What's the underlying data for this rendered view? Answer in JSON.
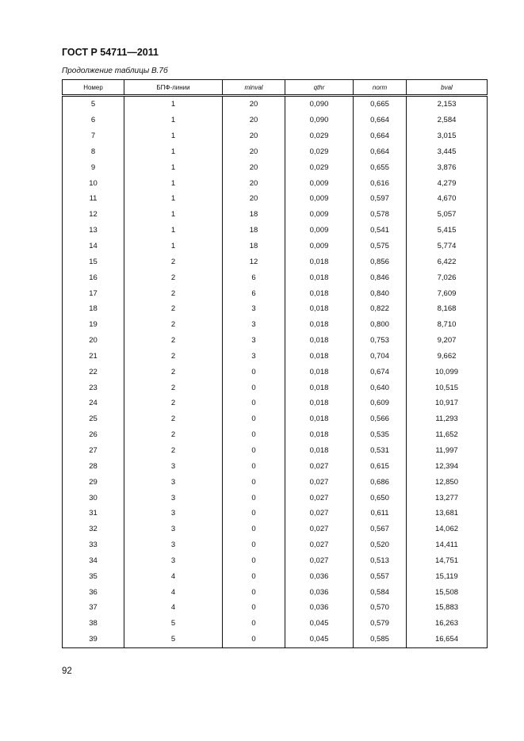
{
  "header": {
    "title": "ГОСТ Р 54711—2011"
  },
  "caption": "Продолжение таблицы В.7б",
  "table": {
    "columns": [
      "Номер",
      "БПФ-линии",
      "minval",
      "qthr",
      "norm",
      "bval"
    ],
    "rows": [
      [
        "5",
        "1",
        "20",
        "0,090",
        "0,665",
        "2,153"
      ],
      [
        "6",
        "1",
        "20",
        "0,090",
        "0,664",
        "2,584"
      ],
      [
        "7",
        "1",
        "20",
        "0,029",
        "0,664",
        "3,015"
      ],
      [
        "8",
        "1",
        "20",
        "0,029",
        "0,664",
        "3,445"
      ],
      [
        "9",
        "1",
        "20",
        "0,029",
        "0,655",
        "3,876"
      ],
      [
        "10",
        "1",
        "20",
        "0,009",
        "0,616",
        "4,279"
      ],
      [
        "11",
        "1",
        "20",
        "0,009",
        "0,597",
        "4,670"
      ],
      [
        "12",
        "1",
        "18",
        "0,009",
        "0,578",
        "5,057"
      ],
      [
        "13",
        "1",
        "18",
        "0,009",
        "0,541",
        "5,415"
      ],
      [
        "14",
        "1",
        "18",
        "0,009",
        "0,575",
        "5,774"
      ],
      [
        "15",
        "2",
        "12",
        "0,018",
        "0,856",
        "6,422"
      ],
      [
        "16",
        "2",
        "6",
        "0,018",
        "0,846",
        "7,026"
      ],
      [
        "17",
        "2",
        "6",
        "0,018",
        "0,840",
        "7,609"
      ],
      [
        "18",
        "2",
        "3",
        "0,018",
        "0,822",
        "8,168"
      ],
      [
        "19",
        "2",
        "3",
        "0,018",
        "0,800",
        "8,710"
      ],
      [
        "20",
        "2",
        "3",
        "0,018",
        "0,753",
        "9,207"
      ],
      [
        "21",
        "2",
        "3",
        "0,018",
        "0,704",
        "9,662"
      ],
      [
        "22",
        "2",
        "0",
        "0,018",
        "0,674",
        "10,099"
      ],
      [
        "23",
        "2",
        "0",
        "0,018",
        "0,640",
        "10,515"
      ],
      [
        "24",
        "2",
        "0",
        "0,018",
        "0,609",
        "10,917"
      ],
      [
        "25",
        "2",
        "0",
        "0,018",
        "0,566",
        "11,293"
      ],
      [
        "26",
        "2",
        "0",
        "0,018",
        "0,535",
        "11,652"
      ],
      [
        "27",
        "2",
        "0",
        "0,018",
        "0,531",
        "11,997"
      ],
      [
        "28",
        "3",
        "0",
        "0,027",
        "0,615",
        "12,394"
      ],
      [
        "29",
        "3",
        "0",
        "0,027",
        "0,686",
        "12,850"
      ],
      [
        "30",
        "3",
        "0",
        "0,027",
        "0,650",
        "13,277"
      ],
      [
        "31",
        "3",
        "0",
        "0,027",
        "0,611",
        "13,681"
      ],
      [
        "32",
        "3",
        "0",
        "0,027",
        "0,567",
        "14,062"
      ],
      [
        "33",
        "3",
        "0",
        "0,027",
        "0,520",
        "14,411"
      ],
      [
        "34",
        "3",
        "0",
        "0,027",
        "0,513",
        "14,751"
      ],
      [
        "35",
        "4",
        "0",
        "0,036",
        "0,557",
        "15,119"
      ],
      [
        "36",
        "4",
        "0",
        "0,036",
        "0,584",
        "15,508"
      ],
      [
        "37",
        "4",
        "0",
        "0,036",
        "0,570",
        "15,883"
      ],
      [
        "38",
        "5",
        "0",
        "0,045",
        "0,579",
        "16,263"
      ],
      [
        "39",
        "5",
        "0",
        "0,045",
        "0,585",
        "16,654"
      ]
    ]
  },
  "footer": {
    "page_number": "92"
  }
}
